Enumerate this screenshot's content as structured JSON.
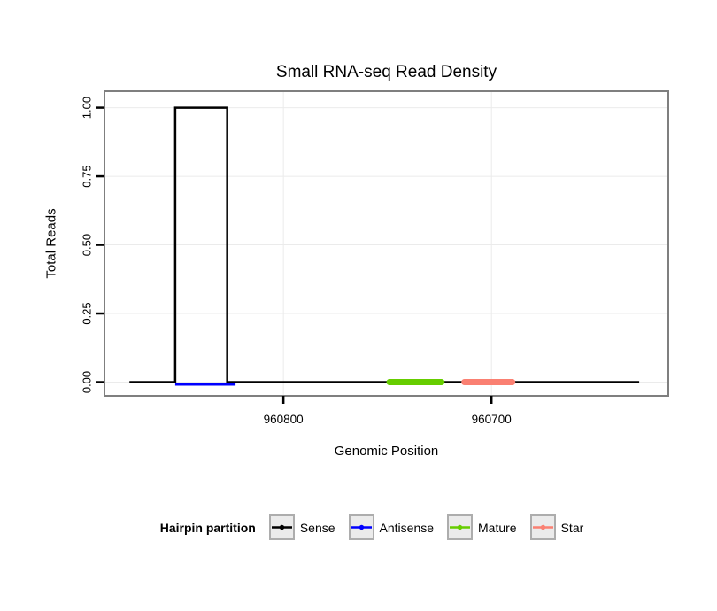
{
  "chart_data": {
    "type": "line",
    "title": "Small RNA-seq Read Density",
    "xlabel": "Genomic Position",
    "ylabel": "Total Reads",
    "x_reversed": true,
    "xlim": [
      960886,
      960615
    ],
    "ylim": [
      -0.05,
      1.06
    ],
    "x_ticks": [
      {
        "value": 960800,
        "label": "960800"
      },
      {
        "value": 960700,
        "label": "960700"
      }
    ],
    "y_ticks": [
      {
        "value": 0.0,
        "label": "0.00"
      },
      {
        "value": 0.25,
        "label": "0.25"
      },
      {
        "value": 0.5,
        "label": "0.50"
      },
      {
        "value": 0.75,
        "label": "0.75"
      },
      {
        "value": 1.0,
        "label": "1.00"
      }
    ],
    "grid": {
      "show": true,
      "color": "#EBEBEB"
    },
    "panel": {
      "background": "#FFFFFF",
      "border_color": "#7F7F7F"
    },
    "series": [
      {
        "name": "Sense",
        "color": "#000000",
        "width": 2.5,
        "points": [
          [
            960874,
            0
          ],
          [
            960852,
            0
          ],
          [
            960852,
            1
          ],
          [
            960827,
            1
          ],
          [
            960827,
            0
          ],
          [
            960629,
            0
          ]
        ]
      },
      {
        "name": "Antisense",
        "color": "#0000FF",
        "width": 3,
        "points": [
          [
            960852,
            0
          ],
          [
            960823,
            0
          ]
        ]
      },
      {
        "name": "Mature",
        "color": "#66CD00",
        "width": 7,
        "points": [
          [
            960749,
            0
          ],
          [
            960724,
            0
          ]
        ]
      },
      {
        "name": "Star",
        "color": "#FA8072",
        "width": 7,
        "points": [
          [
            960713,
            0
          ],
          [
            960690,
            0
          ]
        ]
      }
    ]
  },
  "legend": {
    "title": "Hairpin partition",
    "position": "bottom",
    "key_background": "#EBEBEB",
    "key_border": "#ADADAD"
  }
}
